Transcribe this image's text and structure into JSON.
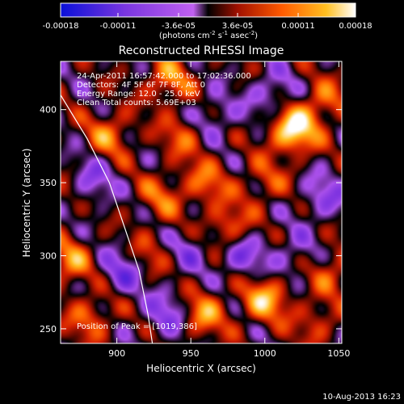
{
  "chart_data": {
    "type": "heatmap",
    "title": "Reconstructed RHESSI Image",
    "xlabel": "Heliocentric X (arcsec)",
    "ylabel": "Heliocentric Y (arcsec)",
    "xlim": [
      862,
      1052
    ],
    "ylim": [
      240,
      433
    ],
    "x_ticks": [
      900,
      950,
      1000,
      1050
    ],
    "y_ticks": [
      250,
      300,
      350,
      400
    ],
    "colorbar": {
      "range": [
        -0.00018,
        0.00018
      ],
      "ticks": [
        {
          "value": -0.00018,
          "label": "-0.00018"
        },
        {
          "value": -0.00011,
          "label": "-0.00011"
        },
        {
          "value": -3.6e-05,
          "label": "-3.6e-05"
        },
        {
          "value": 3.6e-05,
          "label": "3.6e-05"
        },
        {
          "value": 0.00011,
          "label": "0.00011"
        },
        {
          "value": 0.00018,
          "label": "0.00018"
        }
      ],
      "label_prefix": "(photons cm",
      "label_exp1": "-2",
      "label_mid": " s",
      "label_exp2": "-1",
      "label_suffix": " asec",
      "label_exp3": "-2",
      "label_end": ")"
    },
    "annotations": [
      "24-Apr-2011 16:57:42.000 to 17:02:36.000",
      "Detectors: 4F 5F 6F 7F 8F, Att 0",
      "Energy Range: 12.0 - 25.0 keV",
      "Clean    Total counts: 5.69E+03"
    ],
    "peak_label": "Position of Peak = [1019,386]",
    "peak": [
      1019,
      386
    ],
    "limb_curve": [
      [
        862,
        410
      ],
      [
        880,
        380
      ],
      [
        895,
        350
      ],
      [
        905,
        320
      ],
      [
        915,
        290
      ],
      [
        921,
        260
      ],
      [
        924,
        240
      ]
    ],
    "blobs": [
      {
        "x": 1019,
        "y": 386,
        "v": 1.0
      },
      {
        "x": 1000,
        "y": 270,
        "v": 0.7
      },
      {
        "x": 958,
        "y": 260,
        "v": 0.6
      },
      {
        "x": 868,
        "y": 296,
        "v": 0.55
      },
      {
        "x": 935,
        "y": 420,
        "v": 0.55
      },
      {
        "x": 975,
        "y": 320,
        "v": 0.5
      },
      {
        "x": 895,
        "y": 383,
        "v": 0.5
      },
      {
        "x": 1040,
        "y": 405,
        "v": 0.45
      },
      {
        "x": 960,
        "y": 350,
        "v": 0.45
      },
      {
        "x": 930,
        "y": 340,
        "v": 0.4
      },
      {
        "x": 882,
        "y": 258,
        "v": 0.45
      },
      {
        "x": 945,
        "y": 382,
        "v": 0.4
      },
      {
        "x": 1045,
        "y": 290,
        "v": 0.4
      },
      {
        "x": 1000,
        "y": 350,
        "v": 0.35
      },
      {
        "x": 920,
        "y": 300,
        "v": 0.35
      },
      {
        "x": 1035,
        "y": 255,
        "v": 0.35
      },
      {
        "x": 870,
        "y": 345,
        "v": 0.3
      },
      {
        "x": 935,
        "y": 260,
        "v": -0.45
      },
      {
        "x": 880,
        "y": 350,
        "v": -0.55
      },
      {
        "x": 905,
        "y": 290,
        "v": -0.5
      },
      {
        "x": 985,
        "y": 300,
        "v": -0.45
      },
      {
        "x": 1040,
        "y": 340,
        "v": -0.4
      },
      {
        "x": 1005,
        "y": 410,
        "v": -0.4
      },
      {
        "x": 965,
        "y": 395,
        "v": -0.35
      },
      {
        "x": 1020,
        "y": 300,
        "v": -0.3
      },
      {
        "x": 950,
        "y": 305,
        "v": -0.3
      }
    ]
  },
  "footer": {
    "date": "10-Aug-2013 16:23"
  },
  "colors": {
    "background": "#000000",
    "foreground": "#ffffff",
    "colormap": [
      "#1010d0",
      "#6a2ad0",
      "#c070ff",
      "#000000",
      "#b01000",
      "#ff6a00",
      "#ffc000",
      "#ffffff"
    ]
  }
}
